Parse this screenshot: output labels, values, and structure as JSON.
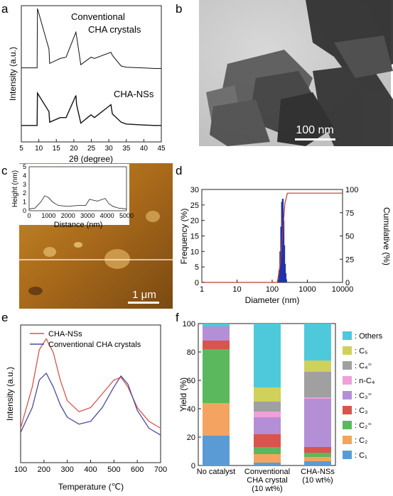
{
  "panel_letters": [
    "a",
    "b",
    "c",
    "d",
    "e",
    "f"
  ],
  "panel_b": {
    "scale_bar": "100 nm"
  },
  "panel_c": {
    "scale_bar": "1 μm"
  },
  "chart_data": [
    {
      "id": "a",
      "type": "line",
      "xlabel": "2θ (degree)",
      "ylabel": "Intensity (a.u.)",
      "xlim": [
        5,
        45
      ],
      "xticks": [
        5,
        10,
        15,
        20,
        25,
        30,
        35,
        40,
        45
      ],
      "series": [
        {
          "name": "Conventional\nCHA crystals",
          "x": [
            5,
            9.5,
            9.6,
            12.9,
            13.1,
            16.1,
            17.8,
            20.6,
            20.8,
            22.0,
            24.9,
            25.9,
            30.6,
            31.0,
            33.5,
            35.0,
            39.5,
            43.2,
            45
          ],
          "values": [
            0.05,
            0.05,
            1.0,
            0.35,
            0.12,
            0.2,
            0.22,
            0.62,
            0.55,
            0.1,
            0.22,
            0.2,
            0.3,
            0.25,
            0.08,
            0.06,
            0.05,
            0.04,
            0.04
          ]
        },
        {
          "name": "CHA-NSs",
          "x": [
            5,
            9.5,
            9.6,
            12.9,
            13.1,
            16.1,
            17.8,
            20.6,
            20.8,
            22.0,
            24.9,
            25.9,
            30.6,
            31.0,
            33.5,
            35.0,
            39.5,
            43.2,
            45
          ],
          "values": [
            0.05,
            0.05,
            0.75,
            0.35,
            0.12,
            0.22,
            0.22,
            0.7,
            0.5,
            0.1,
            0.28,
            0.22,
            0.5,
            0.3,
            0.12,
            0.08,
            0.06,
            0.05,
            0.05
          ]
        }
      ]
    },
    {
      "id": "c-inset",
      "type": "line",
      "xlabel": "Distance (nm)",
      "ylabel": "Height (nm)",
      "xlim": [
        0,
        5000
      ],
      "ylim": [
        0,
        5
      ],
      "xticks": [
        0,
        1000,
        2000,
        3000,
        4000,
        5000
      ],
      "yticks": [
        0,
        1,
        2,
        3,
        4,
        5
      ],
      "series": [
        {
          "x": [
            0,
            300,
            600,
            800,
            1000,
            1200,
            1500,
            2000,
            2500,
            2900,
            3100,
            3500,
            3900,
            4100,
            4300,
            4600,
            5000
          ],
          "values": [
            0.2,
            0.3,
            1.0,
            1.7,
            1.5,
            1.0,
            0.6,
            0.5,
            0.6,
            0.6,
            1.3,
            1.1,
            1.4,
            0.8,
            0.5,
            0.3,
            0.2
          ]
        }
      ]
    },
    {
      "id": "d",
      "type": "bar",
      "xlabel": "Diameter (nm)",
      "ylabel": "Frequency (%)",
      "y2label": "Cumulative (%)",
      "xscale": "log",
      "xlim": [
        1,
        10000
      ],
      "ylim": [
        0,
        30
      ],
      "y2lim": [
        0,
        100
      ],
      "xticks": [
        1,
        10,
        100,
        1000,
        10000
      ],
      "yticks": [
        0,
        5,
        10,
        15,
        20,
        25,
        30
      ],
      "y2ticks": [
        0,
        25,
        50,
        75,
        100
      ],
      "bars": {
        "x": [
          150,
          160,
          170,
          180,
          190,
          200,
          210,
          220,
          230,
          240,
          250
        ],
        "values": [
          1,
          4,
          10,
          18,
          26,
          27,
          20,
          12,
          6,
          3,
          1
        ]
      },
      "cumulative": {
        "x": [
          1,
          140,
          170,
          200,
          230,
          270,
          10000
        ],
        "values": [
          0,
          0,
          20,
          55,
          85,
          96,
          96
        ]
      }
    },
    {
      "id": "e",
      "type": "line",
      "xlabel": "Temperature (℃)",
      "ylabel": "Intensity (a.u.)",
      "xlim": [
        100,
        700
      ],
      "xticks": [
        100,
        200,
        300,
        400,
        500,
        600,
        700
      ],
      "legend": "top-left",
      "series": [
        {
          "name": "CHA-NSs",
          "color": "#d9534f",
          "x": [
            100,
            150,
            180,
            210,
            240,
            270,
            300,
            350,
            400,
            450,
            500,
            530,
            560,
            600,
            650,
            700
          ],
          "values": [
            0.25,
            0.55,
            0.82,
            0.9,
            0.8,
            0.6,
            0.45,
            0.37,
            0.4,
            0.5,
            0.6,
            0.62,
            0.55,
            0.4,
            0.3,
            0.25
          ]
        },
        {
          "name": "Conventional CHA crystals",
          "color": "#4a4aa0",
          "x": [
            100,
            150,
            180,
            210,
            240,
            270,
            300,
            350,
            400,
            450,
            500,
            530,
            560,
            600,
            650,
            700
          ],
          "values": [
            0.22,
            0.4,
            0.6,
            0.65,
            0.55,
            0.42,
            0.33,
            0.28,
            0.3,
            0.4,
            0.55,
            0.63,
            0.57,
            0.38,
            0.25,
            0.2
          ]
        }
      ]
    },
    {
      "id": "f",
      "type": "bar",
      "stacked": true,
      "ylabel": "Yield (%)",
      "ylim": [
        0,
        100
      ],
      "yticks": [
        0,
        20,
        40,
        60,
        80,
        100
      ],
      "categories": [
        "No catalyst",
        "Conventional\nCHA crystal\n(10 wt%)",
        "CHA-NSs\n(10 wt%)"
      ],
      "legend": "right",
      "series": [
        {
          "name": ": C₁",
          "color": "#5b9bd5",
          "values": [
            21,
            2,
            3
          ]
        },
        {
          "name": ": C₂",
          "color": "#f4a460",
          "values": [
            23,
            6,
            3
          ]
        },
        {
          "name": ": C₂⁼",
          "color": "#5cb85c",
          "values": [
            38,
            5,
            3
          ]
        },
        {
          "name": ": C₃",
          "color": "#d9534f",
          "values": [
            6,
            9,
            4
          ]
        },
        {
          "name": ": C₃⁼",
          "color": "#b48fd6",
          "values": [
            10,
            12,
            34
          ]
        },
        {
          "name": ": n-C₄",
          "color": "#f0a0d8",
          "values": [
            0,
            4,
            1
          ]
        },
        {
          "name": ": C₄⁼",
          "color": "#a0a0a0",
          "values": [
            0,
            7,
            18
          ]
        },
        {
          "name": ": C₅",
          "color": "#cfd15a",
          "values": [
            0,
            10,
            8
          ]
        },
        {
          "name": ": Others",
          "color": "#4dc9db",
          "values": [
            2,
            45,
            26
          ]
        }
      ]
    }
  ]
}
